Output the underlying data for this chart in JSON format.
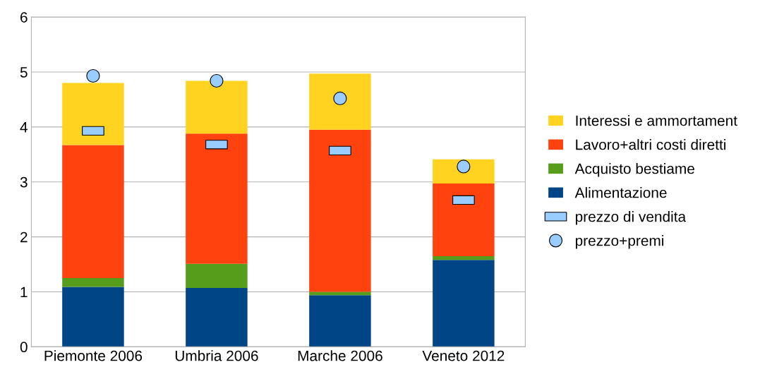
{
  "chart_data": {
    "type": "bar",
    "stacked": true,
    "categories": [
      "Piemonte 2006",
      "Umbria 2006",
      "Marche 2006",
      "Veneto 2012"
    ],
    "series": [
      {
        "name": "Alimentazione",
        "color": "#004586",
        "values": [
          1.09,
          1.07,
          0.94,
          1.58
        ]
      },
      {
        "name": "Acquisto bestiame",
        "color": "#579d1c",
        "values": [
          0.16,
          0.44,
          0.06,
          0.07
        ]
      },
      {
        "name": "Lavoro+altri costi diretti",
        "color": "#ff420e",
        "values": [
          2.42,
          2.37,
          2.95,
          1.32
        ]
      },
      {
        "name": "Interessi e ammortament",
        "color": "#ffd320",
        "values": [
          1.13,
          0.96,
          1.02,
          0.44
        ]
      },
      {
        "name": "prezzo di vendita",
        "type": "scatter",
        "marker": "square",
        "color": "#99ccff",
        "x": [
          "Piemonte 2006",
          "Umbria 2006",
          "Marche 2006",
          "Veneto 2012"
        ],
        "values": [
          3.93,
          3.68,
          3.57,
          2.67
        ]
      },
      {
        "name": "prezzo+premi",
        "type": "scatter",
        "marker": "circle",
        "color": "#99ccff",
        "x": [
          "Piemonte 2006",
          "Umbria 2006",
          "Marche 2006",
          "Veneto 2012"
        ],
        "values": [
          4.93,
          4.84,
          4.52,
          3.28
        ]
      }
    ],
    "ylim": [
      0,
      6
    ],
    "yticks": [
      0,
      1,
      2,
      3,
      4,
      5,
      6
    ],
    "grid": "y",
    "legend": "right"
  }
}
